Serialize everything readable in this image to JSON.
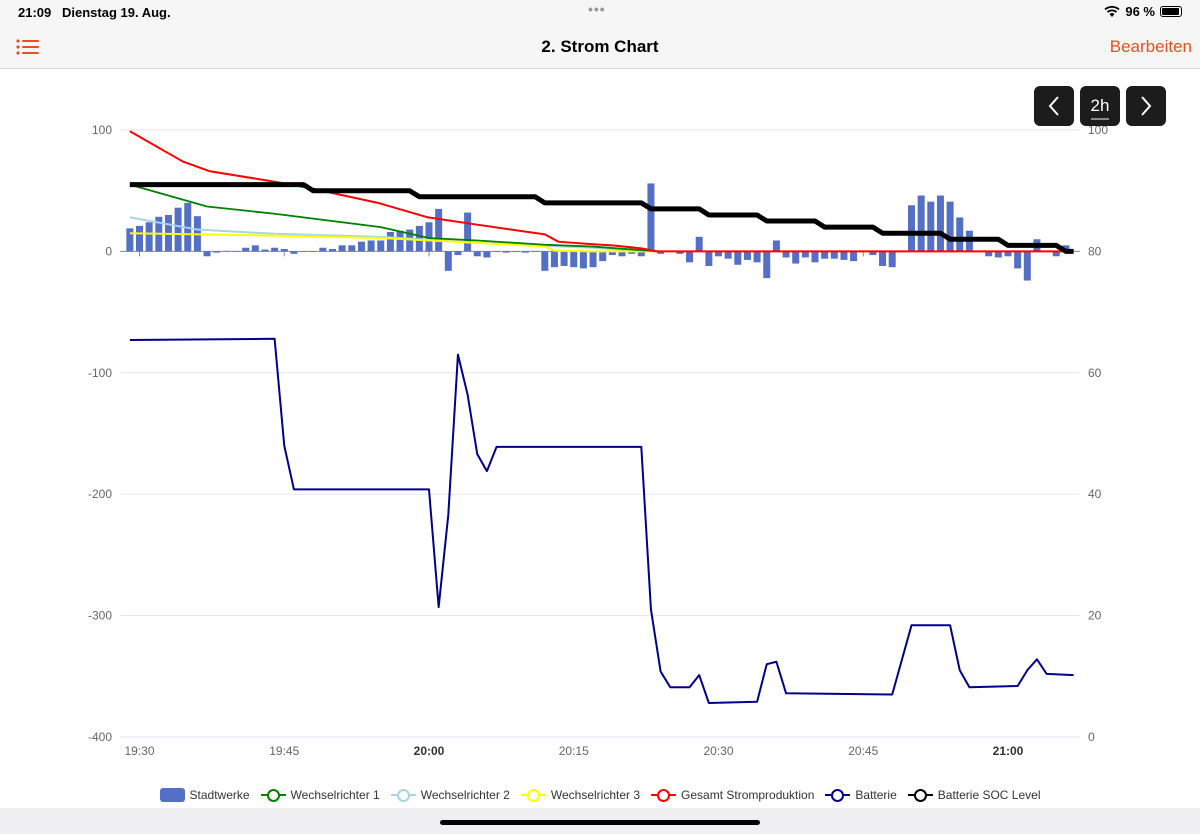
{
  "status_bar": {
    "time": "21:09",
    "date": "Dienstag 19. Aug.",
    "dots": "•••",
    "battery_pct": "96 %",
    "battery_level": 0.96
  },
  "nav": {
    "title": "2. Strom Chart",
    "edit_label": "Bearbeiten"
  },
  "range_controls": {
    "prev": "‹",
    "range": "2h",
    "next": "›"
  },
  "colors": {
    "accent": "#e8501e",
    "bars": "#5470c6",
    "wr1": "#008000",
    "wr2": "#a8d4ea",
    "wr3": "#ffff00",
    "gesamt": "#ff0000",
    "batterie": "#00008b",
    "soc": "#000000"
  },
  "chart_data": {
    "type": "bar+line",
    "x_unit": "minutes after 19:30",
    "xlim": [
      -1,
      97
    ],
    "x_ticks": [
      {
        "m": 0,
        "label": "19:30",
        "bold": false
      },
      {
        "m": 15,
        "label": "19:45",
        "bold": false
      },
      {
        "m": 30,
        "label": "20:00",
        "bold": true
      },
      {
        "m": 45,
        "label": "20:15",
        "bold": false
      },
      {
        "m": 60,
        "label": "20:30",
        "bold": false
      },
      {
        "m": 75,
        "label": "20:45",
        "bold": false
      },
      {
        "m": 90,
        "label": "21:00",
        "bold": true
      }
    ],
    "y_left": {
      "ylim": [
        -400,
        100
      ],
      "ticks": [
        "100",
        "0",
        "-100",
        "-200",
        "-300",
        "-400"
      ]
    },
    "y_right": {
      "ylim": [
        0,
        100
      ],
      "ticks": [
        "100",
        "80",
        "60",
        "40",
        "20",
        "0"
      ]
    },
    "legend": [
      "Stadtwerke",
      "Wechselrichter 1",
      "Wechselrichter 2",
      "Wechselrichter 3",
      "Gesamt Stromproduktion",
      "Batterie",
      "Batterie SOC Level"
    ],
    "legend_position": "bottom",
    "stadtwerke": {
      "start_minute": -1,
      "values": [
        19,
        21,
        24,
        28.5,
        30,
        36,
        40,
        29,
        -4,
        -1,
        0.5,
        0,
        3,
        5,
        1.5,
        3,
        2,
        -2,
        0,
        0,
        3,
        2,
        5,
        5,
        8,
        9,
        9,
        16,
        17,
        18,
        21,
        24,
        35,
        -16,
        -3,
        32,
        -4,
        -5,
        0,
        -1,
        0,
        -1,
        0,
        -16,
        -13,
        -12,
        -13,
        -14,
        -13,
        -8,
        -3,
        -4,
        -2,
        -4,
        56,
        -2,
        0,
        -2,
        -9,
        12,
        -12,
        -4,
        -6,
        -11,
        -7,
        -9,
        -22,
        9,
        -5,
        -10,
        -5,
        -9,
        -6,
        -6,
        -7,
        -8,
        0,
        -3,
        -12,
        -13,
        0,
        38,
        46,
        41,
        46,
        41,
        28,
        17,
        0,
        -4,
        -5,
        -4,
        -14,
        -24,
        10,
        0,
        -4,
        5
      ]
    },
    "wechselrichter_1": [
      [
        -1,
        55
      ],
      [
        7,
        37
      ],
      [
        14,
        31
      ],
      [
        25,
        20
      ],
      [
        30,
        11
      ],
      [
        35,
        9
      ],
      [
        42,
        5.5
      ],
      [
        47,
        4
      ],
      [
        52,
        1
      ],
      [
        54,
        0
      ]
    ],
    "wechselrichter_2": [
      [
        -1,
        28
      ],
      [
        6,
        18
      ],
      [
        14,
        14.5
      ],
      [
        25,
        12
      ],
      [
        35,
        7
      ],
      [
        47,
        3
      ],
      [
        53,
        0
      ]
    ],
    "wechselrichter_3": [
      [
        -1,
        15
      ],
      [
        14,
        13
      ],
      [
        25,
        11
      ],
      [
        35,
        7
      ],
      [
        42,
        4
      ],
      [
        43,
        0.5
      ],
      [
        47,
        0
      ],
      [
        54,
        0
      ]
    ],
    "gesamt": [
      [
        -1,
        99
      ],
      [
        4.5,
        74
      ],
      [
        7.3,
        66
      ],
      [
        14.3,
        57
      ],
      [
        17.7,
        52
      ],
      [
        24.7,
        40
      ],
      [
        29.9,
        28
      ],
      [
        35,
        22
      ],
      [
        42,
        14
      ],
      [
        43.4,
        8
      ],
      [
        46.8,
        6
      ],
      [
        49,
        5
      ],
      [
        52,
        2.5
      ],
      [
        53.6,
        0
      ],
      [
        96.8,
        0
      ]
    ],
    "batterie": [
      [
        -1,
        -73
      ],
      [
        14,
        -72
      ],
      [
        15,
        -160
      ],
      [
        16,
        -196
      ],
      [
        30,
        -196
      ],
      [
        31,
        -293
      ],
      [
        32,
        -217
      ],
      [
        33,
        -85
      ],
      [
        34,
        -118
      ],
      [
        35,
        -167
      ],
      [
        36,
        -181
      ],
      [
        37,
        -161
      ],
      [
        52,
        -161
      ],
      [
        53,
        -295
      ],
      [
        54,
        -346
      ],
      [
        55,
        -359
      ],
      [
        57,
        -359
      ],
      [
        58,
        -349
      ],
      [
        59,
        -372
      ],
      [
        64,
        -371
      ],
      [
        65,
        -340
      ],
      [
        66,
        -338
      ],
      [
        67,
        -364
      ],
      [
        78,
        -365
      ],
      [
        80,
        -308
      ],
      [
        84,
        -308
      ],
      [
        85,
        -345
      ],
      [
        86,
        -359
      ],
      [
        91,
        -358
      ],
      [
        92,
        -345
      ],
      [
        93,
        -336
      ],
      [
        94,
        -348
      ],
      [
        96.8,
        -349
      ]
    ],
    "soc_steps": [
      [
        -1,
        91
      ],
      [
        17,
        91
      ],
      [
        18,
        90
      ],
      [
        28,
        90
      ],
      [
        29,
        89
      ],
      [
        41,
        89
      ],
      [
        42,
        88
      ],
      [
        52,
        88
      ],
      [
        53,
        87
      ],
      [
        58,
        87
      ],
      [
        59,
        86
      ],
      [
        64,
        86
      ],
      [
        65,
        85
      ],
      [
        70,
        85
      ],
      [
        71,
        84
      ],
      [
        76,
        84
      ],
      [
        77,
        83
      ],
      [
        83,
        83
      ],
      [
        84,
        82
      ],
      [
        89,
        82
      ],
      [
        90,
        81
      ],
      [
        95,
        81
      ],
      [
        96,
        80
      ],
      [
        96.8,
        80
      ]
    ]
  }
}
